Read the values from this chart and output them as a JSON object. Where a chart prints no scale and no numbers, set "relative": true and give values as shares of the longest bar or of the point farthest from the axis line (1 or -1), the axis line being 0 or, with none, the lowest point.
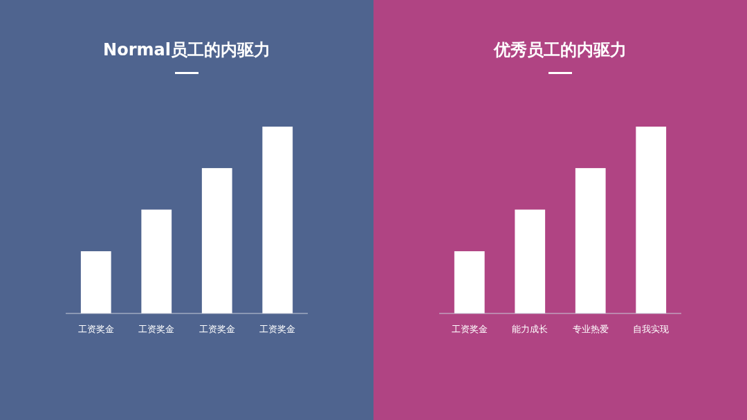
{
  "chart_data": [
    {
      "type": "bar",
      "title": "Normal员工的内驱力",
      "categories": [
        "工资奖金",
        "工资奖金",
        "工资奖金",
        "工资奖金"
      ],
      "values": [
        0.333,
        0.556,
        0.778,
        1
      ],
      "color": "#ffffff",
      "relative": true,
      "grid": false
    },
    {
      "type": "bar",
      "title": "优秀员工的内驱力",
      "categories": [
        "工资奖金",
        "能力成长",
        "专业热爱",
        "自我实现"
      ],
      "values": [
        0.333,
        0.556,
        0.778,
        1
      ],
      "color": "#ffffff",
      "relative": true,
      "grid": false
    }
  ]
}
